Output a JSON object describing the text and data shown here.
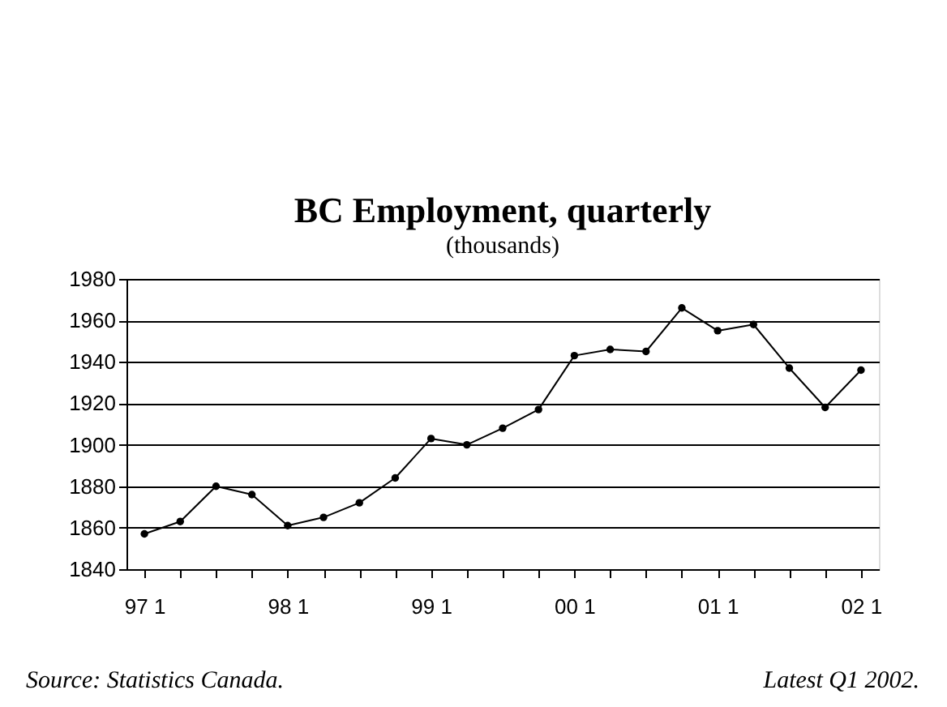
{
  "chart_data": {
    "type": "line",
    "title": "BC Employment, quarterly",
    "subtitle": "(thousands)",
    "categories": [
      "97 1",
      null,
      null,
      null,
      "98 1",
      null,
      null,
      null,
      "99 1",
      null,
      null,
      null,
      "00 1",
      null,
      null,
      null,
      "01 1",
      null,
      null,
      null,
      "02 1"
    ],
    "values": [
      1857,
      1863,
      1880,
      1876,
      1861,
      1865,
      1872,
      1884,
      1903,
      1900,
      1908,
      1917,
      1943,
      1946,
      1945,
      1966,
      1955,
      1958,
      1937,
      1918,
      1936
    ],
    "color": "#000000",
    "marker": "circle",
    "line_style": "solid",
    "ylim": [
      1840,
      1980
    ],
    "yticks": [
      1840,
      1860,
      1880,
      1900,
      1920,
      1940,
      1960,
      1980
    ],
    "grid": "y",
    "annotations": [
      "Source:  Statistics Canada.",
      "Latest Q1 2002."
    ]
  }
}
